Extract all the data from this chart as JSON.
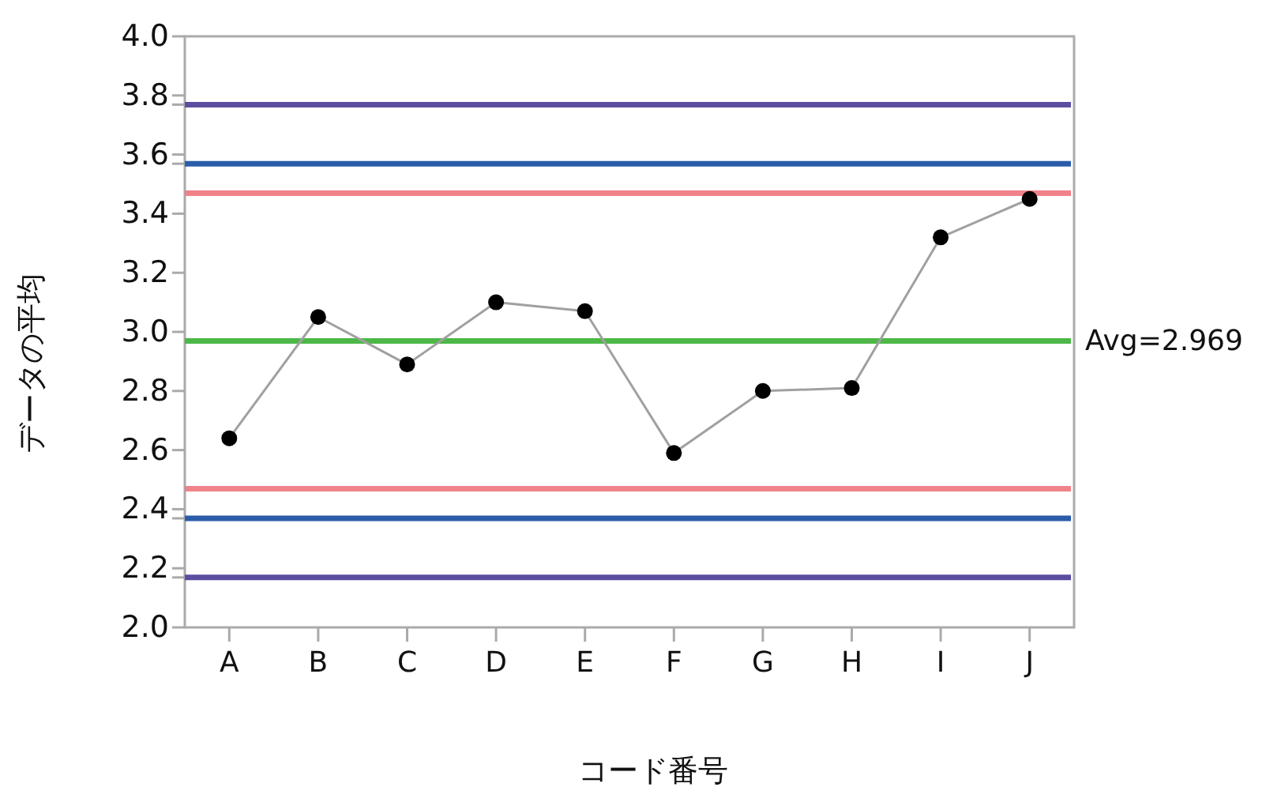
{
  "chart_data": {
    "type": "line",
    "xlabel": "コード番号",
    "ylabel": "データの平均",
    "categories": [
      "A",
      "B",
      "C",
      "D",
      "E",
      "F",
      "G",
      "H",
      "I",
      "J"
    ],
    "series": [
      {
        "color": "#000000",
        "values": [
          2.64,
          3.05,
          2.89,
          3.1,
          3.07,
          2.59,
          2.8,
          2.81,
          3.32,
          3.45
        ]
      }
    ],
    "marker": "circle",
    "line_style": "solid",
    "ylim": [
      2.0,
      4.0
    ],
    "yticks": [
      {
        "value": 2,
        "label": "2.0"
      },
      {
        "value": 2.169,
        "label": null
      },
      2.2,
      {
        "value": 2.369,
        "label": null
      },
      2.4,
      2.6,
      2.8,
      {
        "value": 3,
        "label": "3.0"
      },
      3.2,
      3.4,
      {
        "value": 3.569,
        "label": null
      },
      3.6,
      {
        "value": 3.769,
        "label": null
      },
      3.8,
      {
        "value": 4,
        "label": "4.0"
      }
    ],
    "ref_lines": [
      {
        "axis": "y",
        "value": 3.769,
        "color": "#5b4ea0"
      },
      {
        "axis": "y",
        "value": 3.569,
        "color": "#2a5caa"
      },
      {
        "axis": "y",
        "value": 3.469,
        "color": "#f0828a"
      },
      {
        "axis": "y",
        "value": 2.969,
        "color": "#4db848",
        "label": "Avg=2.969"
      },
      {
        "axis": "y",
        "value": 2.469,
        "color": "#f0828a"
      },
      {
        "axis": "y",
        "value": 2.369,
        "color": "#2a5caa"
      },
      {
        "axis": "y",
        "value": 2.169,
        "color": "#5b4ea0"
      }
    ]
  }
}
